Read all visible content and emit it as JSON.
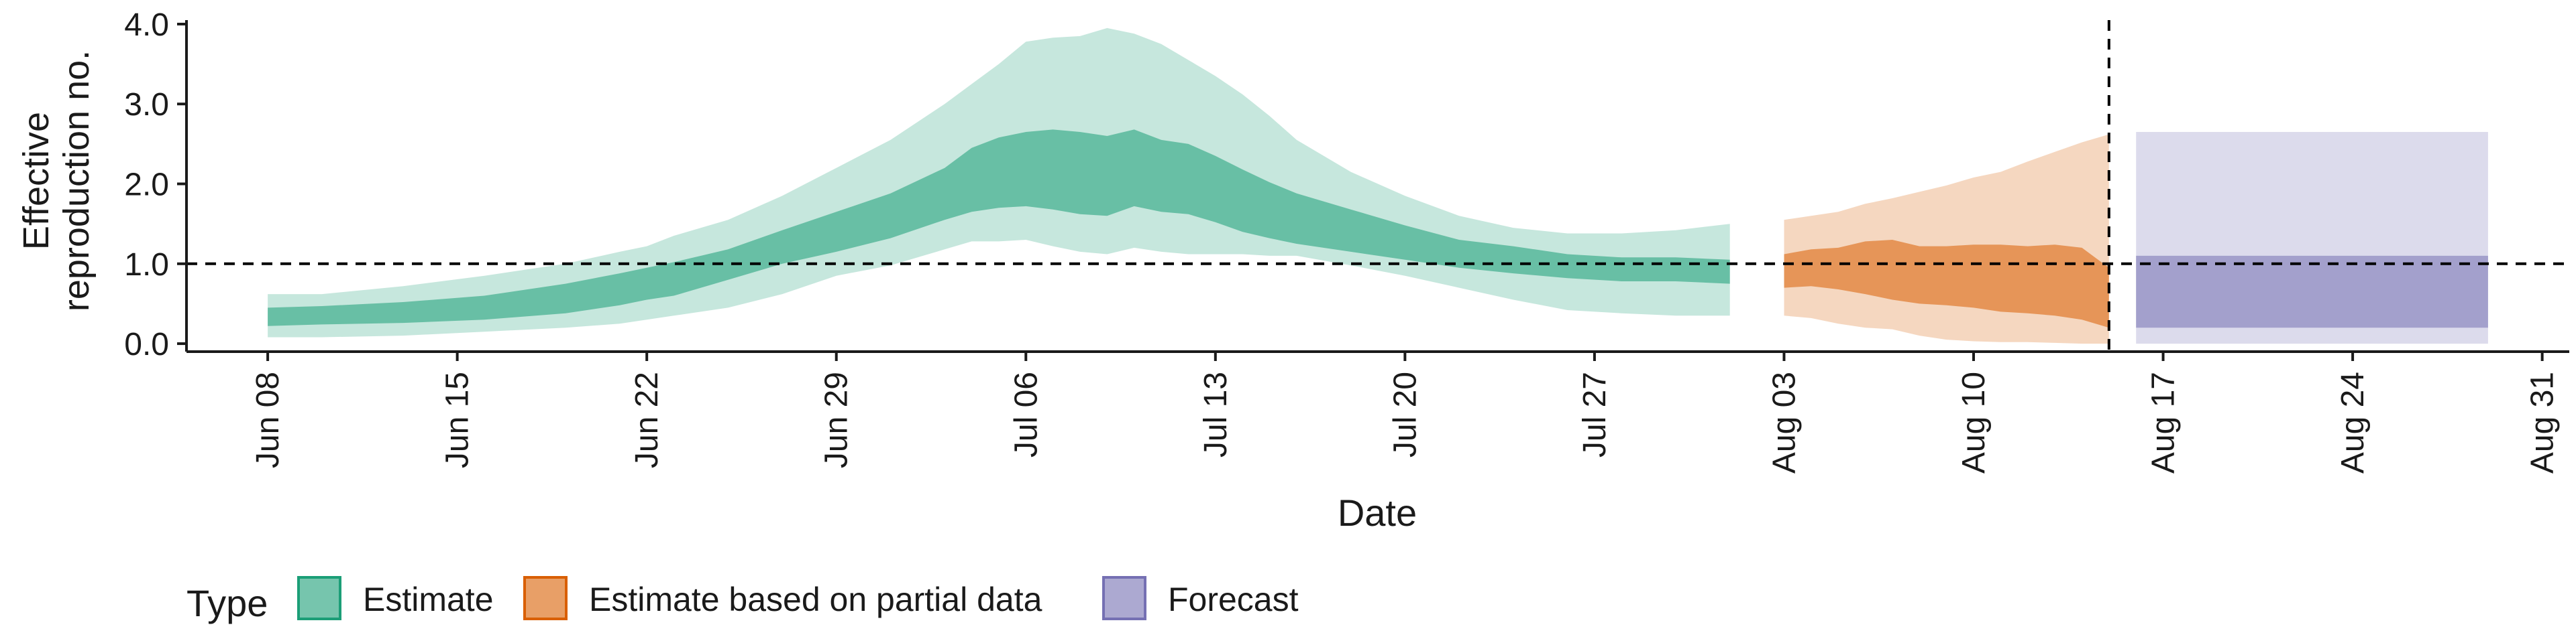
{
  "chart_data": {
    "type": "area",
    "xlabel": "Date",
    "ylabel_lines": [
      "Effective",
      "reproduction no."
    ],
    "ylim": [
      -0.1,
      4.05
    ],
    "xlim": [
      "2020-06-05",
      "2020-09-01"
    ],
    "yticks": [
      0.0,
      1.0,
      2.0,
      3.0,
      4.0
    ],
    "ytick_labels": [
      "0.0",
      "1.0",
      "2.0",
      "3.0",
      "4.0"
    ],
    "xticks": [
      "2020-06-08",
      "2020-06-15",
      "2020-06-22",
      "2020-06-29",
      "2020-07-06",
      "2020-07-13",
      "2020-07-20",
      "2020-07-27",
      "2020-08-03",
      "2020-08-10",
      "2020-08-17",
      "2020-08-24",
      "2020-08-31"
    ],
    "xtick_labels": [
      "Jun 08",
      "Jun 15",
      "Jun 22",
      "Jun 29",
      "Jul 06",
      "Jul 13",
      "Jul 20",
      "Jul 27",
      "Aug 03",
      "Aug 10",
      "Aug 17",
      "Aug 24",
      "Aug 31"
    ],
    "reference_line_y": 1.0,
    "forecast_start": "2020-08-15",
    "grid": false,
    "legend": {
      "title": "Type",
      "position": "bottom-left",
      "entries": [
        {
          "label": "Estimate",
          "color": "#1b9e77"
        },
        {
          "label": "Estimate based on partial data",
          "color": "#d95f02"
        },
        {
          "label": "Forecast",
          "color": "#7570b3"
        }
      ]
    },
    "series": [
      {
        "name": "Estimate",
        "fill": "#1b9e77",
        "x": [
          "2020-06-08",
          "2020-06-10",
          "2020-06-13",
          "2020-06-16",
          "2020-06-19",
          "2020-06-21",
          "2020-06-22",
          "2020-06-23",
          "2020-06-25",
          "2020-06-27",
          "2020-06-29",
          "2020-07-01",
          "2020-07-03",
          "2020-07-04",
          "2020-07-05",
          "2020-07-06",
          "2020-07-07",
          "2020-07-08",
          "2020-07-09",
          "2020-07-10",
          "2020-07-11",
          "2020-07-12",
          "2020-07-13",
          "2020-07-14",
          "2020-07-15",
          "2020-07-16",
          "2020-07-18",
          "2020-07-20",
          "2020-07-22",
          "2020-07-24",
          "2020-07-26",
          "2020-07-28",
          "2020-07-30",
          "2020-08-01"
        ],
        "outer_upper": [
          0.62,
          0.62,
          0.72,
          0.85,
          1.0,
          1.15,
          1.22,
          1.35,
          1.55,
          1.85,
          2.2,
          2.55,
          3.0,
          3.25,
          3.5,
          3.78,
          3.83,
          3.85,
          3.95,
          3.88,
          3.75,
          3.55,
          3.35,
          3.12,
          2.85,
          2.55,
          2.15,
          1.85,
          1.6,
          1.45,
          1.38,
          1.38,
          1.42,
          1.5
        ],
        "inner_upper": [
          0.45,
          0.47,
          0.52,
          0.6,
          0.75,
          0.88,
          0.95,
          1.02,
          1.18,
          1.42,
          1.65,
          1.88,
          2.2,
          2.45,
          2.58,
          2.65,
          2.68,
          2.65,
          2.6,
          2.68,
          2.55,
          2.5,
          2.35,
          2.18,
          2.02,
          1.88,
          1.68,
          1.48,
          1.3,
          1.22,
          1.12,
          1.08,
          1.08,
          1.05
        ],
        "inner_lower": [
          0.22,
          0.24,
          0.26,
          0.3,
          0.38,
          0.48,
          0.55,
          0.6,
          0.8,
          1.0,
          1.15,
          1.32,
          1.55,
          1.65,
          1.7,
          1.72,
          1.68,
          1.62,
          1.6,
          1.72,
          1.65,
          1.62,
          1.52,
          1.4,
          1.32,
          1.25,
          1.15,
          1.05,
          0.95,
          0.88,
          0.82,
          0.78,
          0.78,
          0.75
        ],
        "outer_lower": [
          0.08,
          0.08,
          0.1,
          0.15,
          0.2,
          0.25,
          0.3,
          0.35,
          0.45,
          0.62,
          0.85,
          0.98,
          1.18,
          1.28,
          1.28,
          1.3,
          1.22,
          1.15,
          1.12,
          1.2,
          1.15,
          1.12,
          1.12,
          1.12,
          1.1,
          1.1,
          0.98,
          0.85,
          0.7,
          0.55,
          0.42,
          0.38,
          0.35,
          0.35
        ]
      },
      {
        "name": "Estimate based on partial data",
        "fill": "#d95f02",
        "x": [
          "2020-08-03",
          "2020-08-04",
          "2020-08-05",
          "2020-08-06",
          "2020-08-07",
          "2020-08-08",
          "2020-08-09",
          "2020-08-10",
          "2020-08-11",
          "2020-08-12",
          "2020-08-13",
          "2020-08-14",
          "2020-08-15"
        ],
        "outer_upper": [
          1.55,
          1.6,
          1.65,
          1.75,
          1.82,
          1.9,
          1.98,
          2.08,
          2.15,
          2.28,
          2.4,
          2.52,
          2.62
        ],
        "inner_upper": [
          1.12,
          1.18,
          1.2,
          1.28,
          1.3,
          1.22,
          1.22,
          1.24,
          1.24,
          1.22,
          1.24,
          1.2,
          0.95
        ],
        "inner_lower": [
          0.7,
          0.72,
          0.68,
          0.62,
          0.55,
          0.5,
          0.48,
          0.45,
          0.4,
          0.38,
          0.35,
          0.3,
          0.2
        ],
        "outer_lower": [
          0.35,
          0.32,
          0.25,
          0.2,
          0.18,
          0.1,
          0.05,
          0.03,
          0.02,
          0.02,
          0.01,
          0.0,
          0.0
        ]
      },
      {
        "name": "Forecast",
        "fill": "#7570b3",
        "x": [
          "2020-08-16",
          "2020-08-29"
        ],
        "outer_upper": [
          2.65,
          2.65
        ],
        "inner_upper": [
          1.1,
          1.1
        ],
        "inner_lower": [
          0.2,
          0.2
        ],
        "outer_lower": [
          0.0,
          0.0
        ]
      }
    ]
  }
}
